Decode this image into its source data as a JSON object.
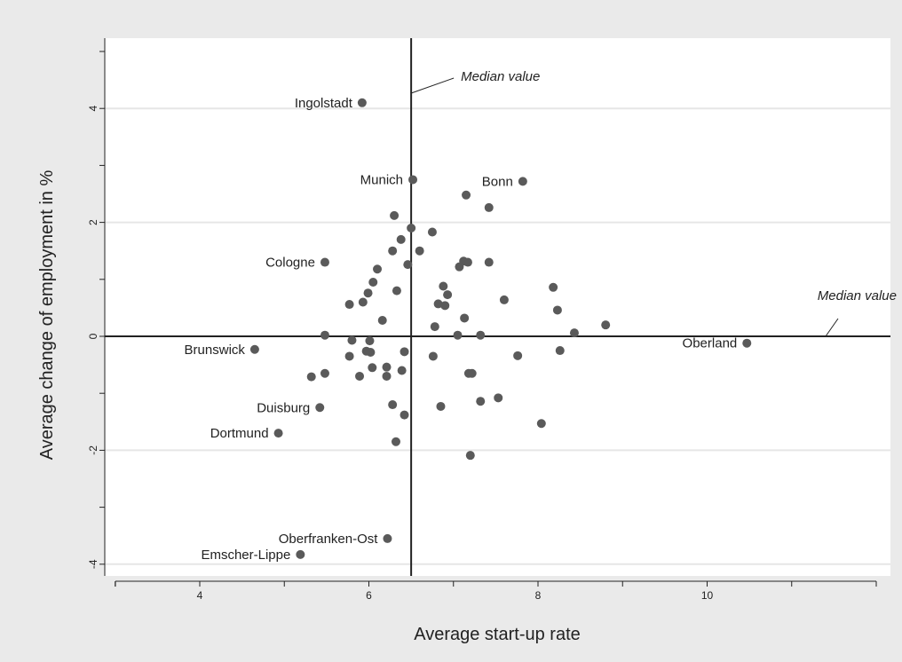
{
  "chart_data": {
    "type": "scatter",
    "xlabel": "Average start-up rate",
    "ylabel": "Average change of employment in %",
    "xlim": [
      2.95,
      11.95
    ],
    "ylim": [
      -4.2,
      5.2
    ],
    "x_ticks": [
      4,
      6,
      8,
      10
    ],
    "y_ticks": [
      -4,
      -2,
      0,
      2,
      4
    ],
    "x_tick_labels": [
      "4",
      "6",
      "8",
      "10"
    ],
    "y_tick_labels": [
      "-4",
      "-2",
      "0",
      "2",
      "4"
    ],
    "grid": true,
    "marker_color": "#5a5a5a",
    "median_x": 6.5,
    "median_y": 0,
    "median_annotation": "Median value",
    "labeled_points": [
      {
        "name": "Ingolstadt",
        "x": 5.92,
        "y": 4.1
      },
      {
        "name": "Munich",
        "x": 6.52,
        "y": 2.75
      },
      {
        "name": "Bonn",
        "x": 7.82,
        "y": 2.72
      },
      {
        "name": "Cologne",
        "x": 5.48,
        "y": 1.3
      },
      {
        "name": "Brunswick",
        "x": 4.65,
        "y": -0.23
      },
      {
        "name": "Oberland",
        "x": 10.47,
        "y": -0.12
      },
      {
        "name": "Duisburg",
        "x": 5.42,
        "y": -1.25
      },
      {
        "name": "Dortmund",
        "x": 4.93,
        "y": -1.7
      },
      {
        "name": "Oberfranken-Ost",
        "x": 6.22,
        "y": -3.55
      },
      {
        "name": "Emscher-Lippe",
        "x": 5.19,
        "y": -3.83
      }
    ],
    "points": [
      {
        "x": 6.3,
        "y": 2.12
      },
      {
        "x": 7.15,
        "y": 2.48
      },
      {
        "x": 7.42,
        "y": 2.26
      },
      {
        "x": 6.5,
        "y": 1.9
      },
      {
        "x": 6.75,
        "y": 1.83
      },
      {
        "x": 6.38,
        "y": 1.7
      },
      {
        "x": 6.6,
        "y": 1.5
      },
      {
        "x": 6.28,
        "y": 1.5
      },
      {
        "x": 6.46,
        "y": 1.26
      },
      {
        "x": 7.12,
        "y": 1.32
      },
      {
        "x": 7.17,
        "y": 1.3
      },
      {
        "x": 7.07,
        "y": 1.22
      },
      {
        "x": 7.42,
        "y": 1.3
      },
      {
        "x": 6.1,
        "y": 1.18
      },
      {
        "x": 6.05,
        "y": 0.95
      },
      {
        "x": 6.33,
        "y": 0.8
      },
      {
        "x": 5.99,
        "y": 0.76
      },
      {
        "x": 6.88,
        "y": 0.88
      },
      {
        "x": 6.93,
        "y": 0.73
      },
      {
        "x": 8.18,
        "y": 0.86
      },
      {
        "x": 7.6,
        "y": 0.64
      },
      {
        "x": 5.93,
        "y": 0.6
      },
      {
        "x": 5.77,
        "y": 0.56
      },
      {
        "x": 6.82,
        "y": 0.57
      },
      {
        "x": 6.9,
        "y": 0.54
      },
      {
        "x": 8.23,
        "y": 0.46
      },
      {
        "x": 6.16,
        "y": 0.28
      },
      {
        "x": 7.13,
        "y": 0.32
      },
      {
        "x": 6.78,
        "y": 0.17
      },
      {
        "x": 8.8,
        "y": 0.2
      },
      {
        "x": 8.43,
        "y": 0.06
      },
      {
        "x": 7.05,
        "y": 0.02
      },
      {
        "x": 7.32,
        "y": 0.02
      },
      {
        "x": 5.48,
        "y": 0.02
      },
      {
        "x": 5.8,
        "y": -0.07
      },
      {
        "x": 6.01,
        "y": -0.08
      },
      {
        "x": 5.97,
        "y": -0.26
      },
      {
        "x": 6.02,
        "y": -0.28
      },
      {
        "x": 6.42,
        "y": -0.27
      },
      {
        "x": 5.77,
        "y": -0.35
      },
      {
        "x": 6.76,
        "y": -0.35
      },
      {
        "x": 7.76,
        "y": -0.34
      },
      {
        "x": 8.26,
        "y": -0.25
      },
      {
        "x": 6.04,
        "y": -0.55
      },
      {
        "x": 6.21,
        "y": -0.54
      },
      {
        "x": 6.39,
        "y": -0.6
      },
      {
        "x": 5.48,
        "y": -0.65
      },
      {
        "x": 5.32,
        "y": -0.71
      },
      {
        "x": 5.89,
        "y": -0.7
      },
      {
        "x": 6.21,
        "y": -0.7
      },
      {
        "x": 7.18,
        "y": -0.65
      },
      {
        "x": 7.22,
        "y": -0.65
      },
      {
        "x": 7.53,
        "y": -1.08
      },
      {
        "x": 7.32,
        "y": -1.14
      },
      {
        "x": 6.28,
        "y": -1.2
      },
      {
        "x": 6.85,
        "y": -1.23
      },
      {
        "x": 6.42,
        "y": -1.38
      },
      {
        "x": 8.04,
        "y": -1.53
      },
      {
        "x": 6.32,
        "y": -1.85
      },
      {
        "x": 7.2,
        "y": -2.09
      }
    ]
  }
}
